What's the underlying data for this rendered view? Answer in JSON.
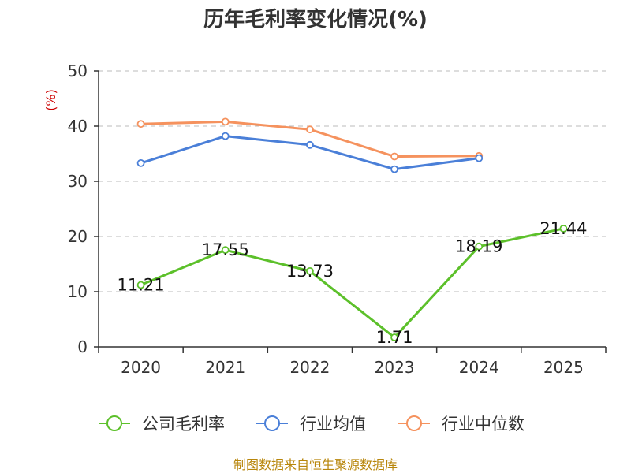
{
  "chart_data": {
    "type": "line",
    "title": "历年毛利率变化情况(%)",
    "ylabel": "(%)",
    "xlabel": "",
    "categories": [
      "2020",
      "2021",
      "2022",
      "2023",
      "2024",
      "2025"
    ],
    "ylim": [
      0,
      50
    ],
    "yticks": [
      0,
      10,
      20,
      30,
      40,
      50
    ],
    "grid": true,
    "legend_position": "bottom",
    "series": [
      {
        "name": "公司毛利率",
        "color": "#5cc02a",
        "values": [
          11.21,
          17.55,
          13.73,
          1.71,
          18.19,
          21.44
        ],
        "labels": [
          "11.21",
          "17.55",
          "13.73",
          "1.71",
          "18.19",
          "21.44"
        ]
      },
      {
        "name": "行业均值",
        "color": "#4a7fd8",
        "values": [
          33.3,
          38.2,
          36.6,
          32.2,
          34.2,
          null
        ]
      },
      {
        "name": "行业中位数",
        "color": "#f5925e",
        "values": [
          40.4,
          40.8,
          39.4,
          34.5,
          34.6,
          null
        ]
      }
    ]
  },
  "source": "制图数据来自恒生聚源数据库"
}
